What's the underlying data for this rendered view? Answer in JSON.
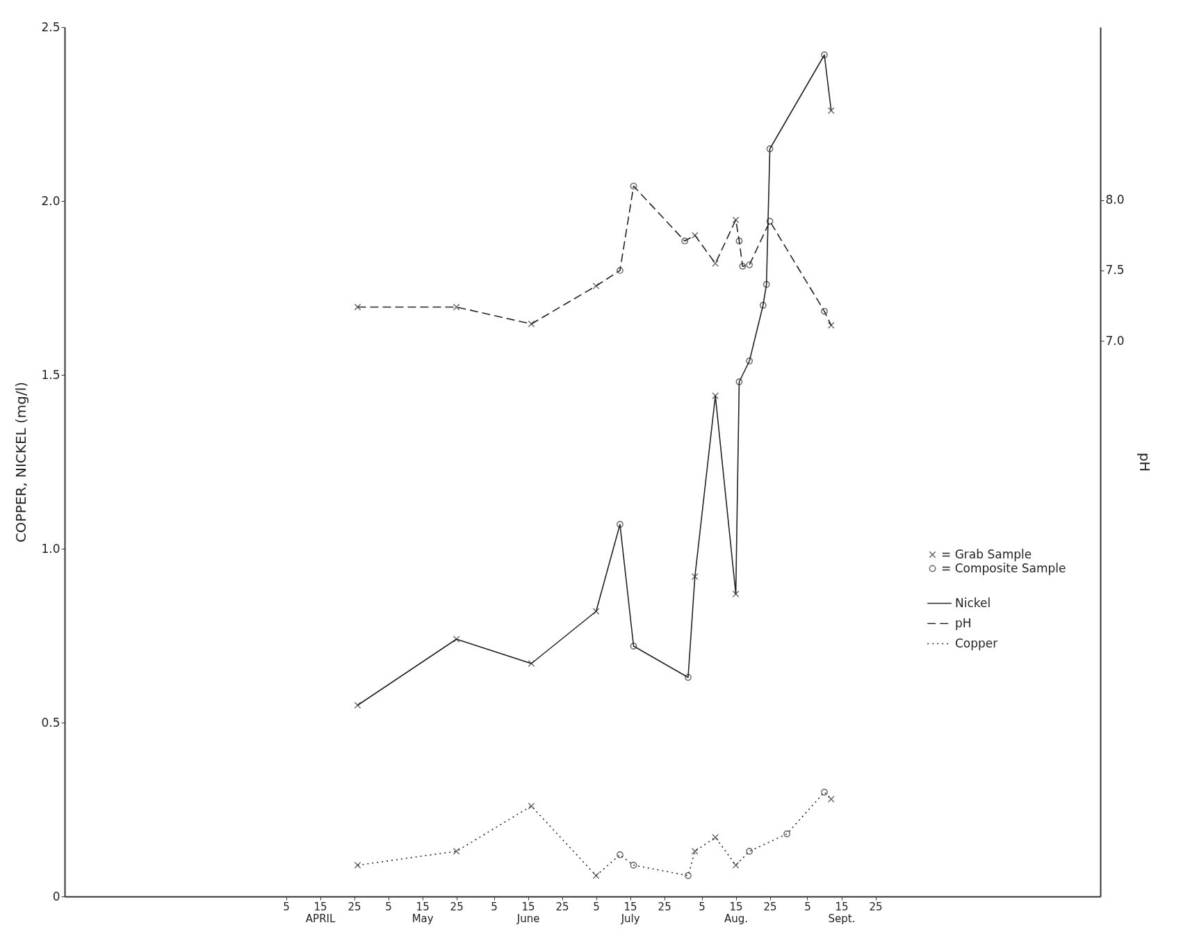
{
  "chart_data": {
    "type": "line",
    "ylabel": "COPPER, NICKEL  (mg/l)",
    "y2label": "pH",
    "xlim": [
      "--01-30",
      "--11-30"
    ],
    "xticks": [
      {
        "value": "--04-05",
        "label": "5"
      },
      {
        "value": "--04-15",
        "label": "15\nAPRIL"
      },
      {
        "value": "--04-25",
        "label": "25"
      },
      {
        "value": "--05-05",
        "label": "5"
      },
      {
        "value": "--05-15",
        "label": "15\nMay"
      },
      {
        "value": "--05-25",
        "label": "25"
      },
      {
        "value": "--06-05",
        "label": "5"
      },
      {
        "value": "--06-15",
        "label": "15\nJune"
      },
      {
        "value": "--06-25",
        "label": "25"
      },
      {
        "value": "--07-05",
        "label": "5"
      },
      {
        "value": "--07-15",
        "label": "15\nJuly"
      },
      {
        "value": "--07-25",
        "label": "25"
      },
      {
        "value": "--08-05",
        "label": "5"
      },
      {
        "value": "--08-15",
        "label": "15\nAug."
      },
      {
        "value": "--08-25",
        "label": "25"
      },
      {
        "value": "--09-05",
        "label": "5"
      },
      {
        "value": "--09-15",
        "label": "15\nSept."
      },
      {
        "value": "--09-25",
        "label": "25"
      }
    ],
    "ylim": [
      0,
      2.5
    ],
    "yticks": [
      0,
      0.5,
      {
        "value": 1,
        "label": "1.0"
      },
      1.5,
      {
        "value": 2,
        "label": "2.0"
      },
      2.5
    ],
    "y2lim": [
      3.05,
      9.23
    ],
    "y2ticks": [
      {
        "value": 7,
        "label": "7.0"
      },
      7.5,
      {
        "value": 8,
        "label": "8.0"
      }
    ],
    "grid": false,
    "legend": "right",
    "series": [
      {
        "name": "Nickel",
        "line_style": "solid",
        "color": "#222222",
        "x": [
          "--04-26",
          "--05-25",
          "--06-16",
          "--07-05",
          "--07-12",
          "--07-16",
          "--08-01",
          "--08-03",
          "--08-09",
          "--08-15",
          "--08-16",
          "--08-19",
          "--08-23",
          "--08-24",
          "--08-25",
          "--09-10",
          "--09-12"
        ],
        "values": [
          0.55,
          0.74,
          0.67,
          0.82,
          1.07,
          0.72,
          0.63,
          0.92,
          1.44,
          0.87,
          1.48,
          1.54,
          1.7,
          1.76,
          2.15,
          2.42,
          2.26
        ]
      },
      {
        "name": "pH",
        "axis": "y2",
        "line_style": "dashed",
        "color": "#222222",
        "x": [
          "--04-26",
          "--05-25",
          "--06-16",
          "--07-05",
          "--07-12",
          "--07-16",
          "--07-31",
          "--08-03",
          "--08-09",
          "--08-15",
          "--08-16",
          "--08-17",
          "--08-19",
          "--08-25",
          "--09-10",
          "--09-12"
        ],
        "values": [
          7.24,
          7.24,
          7.12,
          7.39,
          7.5,
          8.1,
          7.71,
          7.75,
          7.55,
          7.86,
          7.71,
          7.53,
          7.54,
          7.85,
          7.21,
          7.11
        ]
      },
      {
        "name": "Copper",
        "line_style": "dotted",
        "color": "#222222",
        "x": [
          "--04-26",
          "--05-25",
          "--06-16",
          "--07-05",
          "--07-12",
          "--07-16",
          "--08-01",
          "--08-03",
          "--08-09",
          "--08-15",
          "--08-19",
          "--08-30",
          "--09-10",
          "--09-12"
        ],
        "values": [
          0.09,
          0.13,
          0.26,
          0.06,
          0.12,
          0.09,
          0.06,
          0.13,
          0.17,
          0.09,
          0.13,
          0.18,
          0.3,
          0.28
        ]
      },
      {
        "name": "= Grab Sample",
        "type": "scatter",
        "marker": "cross",
        "color": "#222222",
        "x": [
          "--04-26",
          "--05-25",
          "--06-16",
          "--07-05",
          "--08-03",
          "--08-09",
          "--08-15",
          "--09-12",
          "--04-26",
          "--05-25",
          "--06-16",
          "--07-05",
          "--08-03",
          "--08-09",
          "--08-15",
          "--09-12"
        ],
        "values": [
          0.55,
          0.74,
          0.67,
          0.82,
          0.92,
          1.44,
          0.87,
          2.26,
          0.09,
          0.13,
          0.26,
          0.06,
          0.13,
          0.17,
          0.09,
          0.28
        ]
      },
      {
        "name": "= Composite Sample",
        "type": "scatter",
        "marker": "circle",
        "color": "#222222",
        "x": [
          "--07-12",
          "--07-16",
          "--08-01",
          "--08-16",
          "--08-19",
          "--08-23",
          "--08-24",
          "--08-25",
          "--09-10",
          "--07-12",
          "--07-16",
          "--08-01",
          "--08-19",
          "--08-30",
          "--09-10"
        ],
        "values": [
          1.07,
          0.72,
          0.63,
          1.48,
          1.54,
          1.7,
          1.76,
          2.15,
          2.42,
          0.12,
          0.09,
          0.06,
          0.13,
          0.18,
          0.3
        ]
      },
      {
        "type": "scatter",
        "axis": "y2",
        "marker": "cross",
        "color": "#222222",
        "x": [
          "--04-26",
          "--05-25",
          "--06-16",
          "--07-05",
          "--08-03",
          "--08-09",
          "--08-15",
          "--09-12"
        ],
        "values": [
          7.24,
          7.24,
          7.12,
          7.39,
          7.75,
          7.55,
          7.86,
          7.11
        ]
      },
      {
        "type": "scatter",
        "axis": "y2",
        "marker": "circle",
        "color": "#222222",
        "x": [
          "--07-12",
          "--07-16",
          "--07-31",
          "--08-16",
          "--08-17",
          "--08-19",
          "--08-25",
          "--09-10"
        ],
        "values": [
          7.5,
          8.1,
          7.71,
          7.71,
          7.53,
          7.54,
          7.85,
          7.21
        ]
      }
    ]
  }
}
